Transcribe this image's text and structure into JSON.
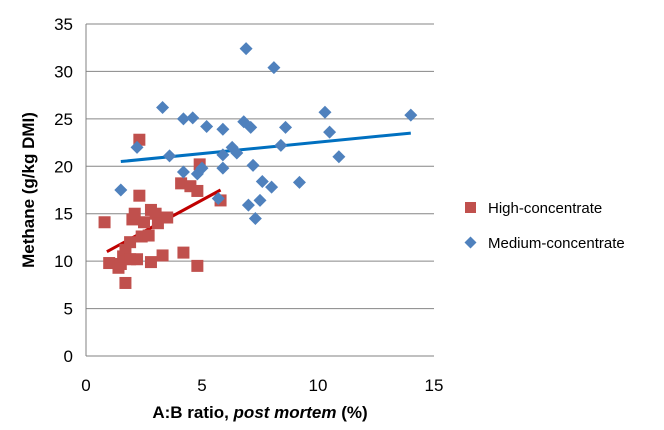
{
  "chart_data": {
    "type": "scatter",
    "xlabel": {
      "prefix": "A:B ratio, ",
      "italic": "post mortem",
      "suffix": " (%)"
    },
    "ylabel": "Methane (g/kg DMI)",
    "xlim": [
      0,
      15
    ],
    "ylim": [
      0,
      35
    ],
    "xticks": [
      0,
      5,
      10,
      15
    ],
    "yticks": [
      0,
      5,
      10,
      15,
      20,
      25,
      30,
      35
    ],
    "grid": "horizontal",
    "legend_position": "right",
    "series": [
      {
        "name": "High-concentrate",
        "marker": "square",
        "color": "#C0504D",
        "trendline_color": "#C00000",
        "trendline": {
          "x": [
            0.9,
            5.8
          ],
          "y": [
            11.0,
            17.5
          ]
        },
        "points": [
          [
            0.8,
            14.1
          ],
          [
            1.0,
            9.8
          ],
          [
            1.4,
            9.3
          ],
          [
            1.5,
            9.7
          ],
          [
            1.6,
            10.5
          ],
          [
            1.7,
            7.7
          ],
          [
            1.7,
            11.2
          ],
          [
            1.9,
            10.2
          ],
          [
            1.9,
            12.0
          ],
          [
            2.0,
            14.4
          ],
          [
            2.1,
            15.0
          ],
          [
            2.2,
            10.2
          ],
          [
            2.3,
            22.8
          ],
          [
            2.3,
            16.9
          ],
          [
            2.4,
            12.6
          ],
          [
            2.5,
            14.1
          ],
          [
            2.7,
            12.7
          ],
          [
            2.8,
            15.4
          ],
          [
            2.8,
            9.9
          ],
          [
            3.0,
            15.0
          ],
          [
            3.1,
            14.0
          ],
          [
            3.3,
            10.6
          ],
          [
            3.5,
            14.6
          ],
          [
            4.1,
            18.2
          ],
          [
            4.2,
            10.9
          ],
          [
            4.5,
            17.9
          ],
          [
            4.8,
            17.4
          ],
          [
            4.8,
            9.5
          ],
          [
            4.9,
            20.2
          ],
          [
            5.8,
            16.4
          ]
        ]
      },
      {
        "name": "Medium-concentrate",
        "marker": "diamond",
        "color": "#4F81BD",
        "trendline_color": "#0070C0",
        "trendline": {
          "x": [
            1.5,
            14.0
          ],
          "y": [
            20.5,
            23.5
          ]
        },
        "points": [
          [
            1.5,
            17.5
          ],
          [
            2.2,
            22.0
          ],
          [
            3.3,
            26.2
          ],
          [
            3.6,
            21.1
          ],
          [
            4.2,
            25.0
          ],
          [
            4.2,
            19.4
          ],
          [
            4.6,
            25.1
          ],
          [
            4.8,
            19.2
          ],
          [
            5.0,
            19.8
          ],
          [
            5.2,
            24.2
          ],
          [
            5.7,
            16.6
          ],
          [
            5.9,
            23.9
          ],
          [
            5.9,
            21.2
          ],
          [
            5.9,
            19.8
          ],
          [
            6.3,
            22.0
          ],
          [
            6.5,
            21.4
          ],
          [
            6.8,
            24.7
          ],
          [
            6.9,
            32.4
          ],
          [
            7.0,
            15.9
          ],
          [
            7.1,
            24.1
          ],
          [
            7.2,
            20.1
          ],
          [
            7.3,
            14.5
          ],
          [
            7.5,
            16.4
          ],
          [
            7.6,
            18.4
          ],
          [
            8.0,
            17.8
          ],
          [
            8.1,
            30.4
          ],
          [
            8.4,
            22.2
          ],
          [
            8.6,
            24.1
          ],
          [
            9.2,
            18.3
          ],
          [
            10.3,
            25.7
          ],
          [
            10.5,
            23.6
          ],
          [
            10.9,
            21.0
          ],
          [
            14.0,
            25.4
          ]
        ]
      }
    ]
  }
}
